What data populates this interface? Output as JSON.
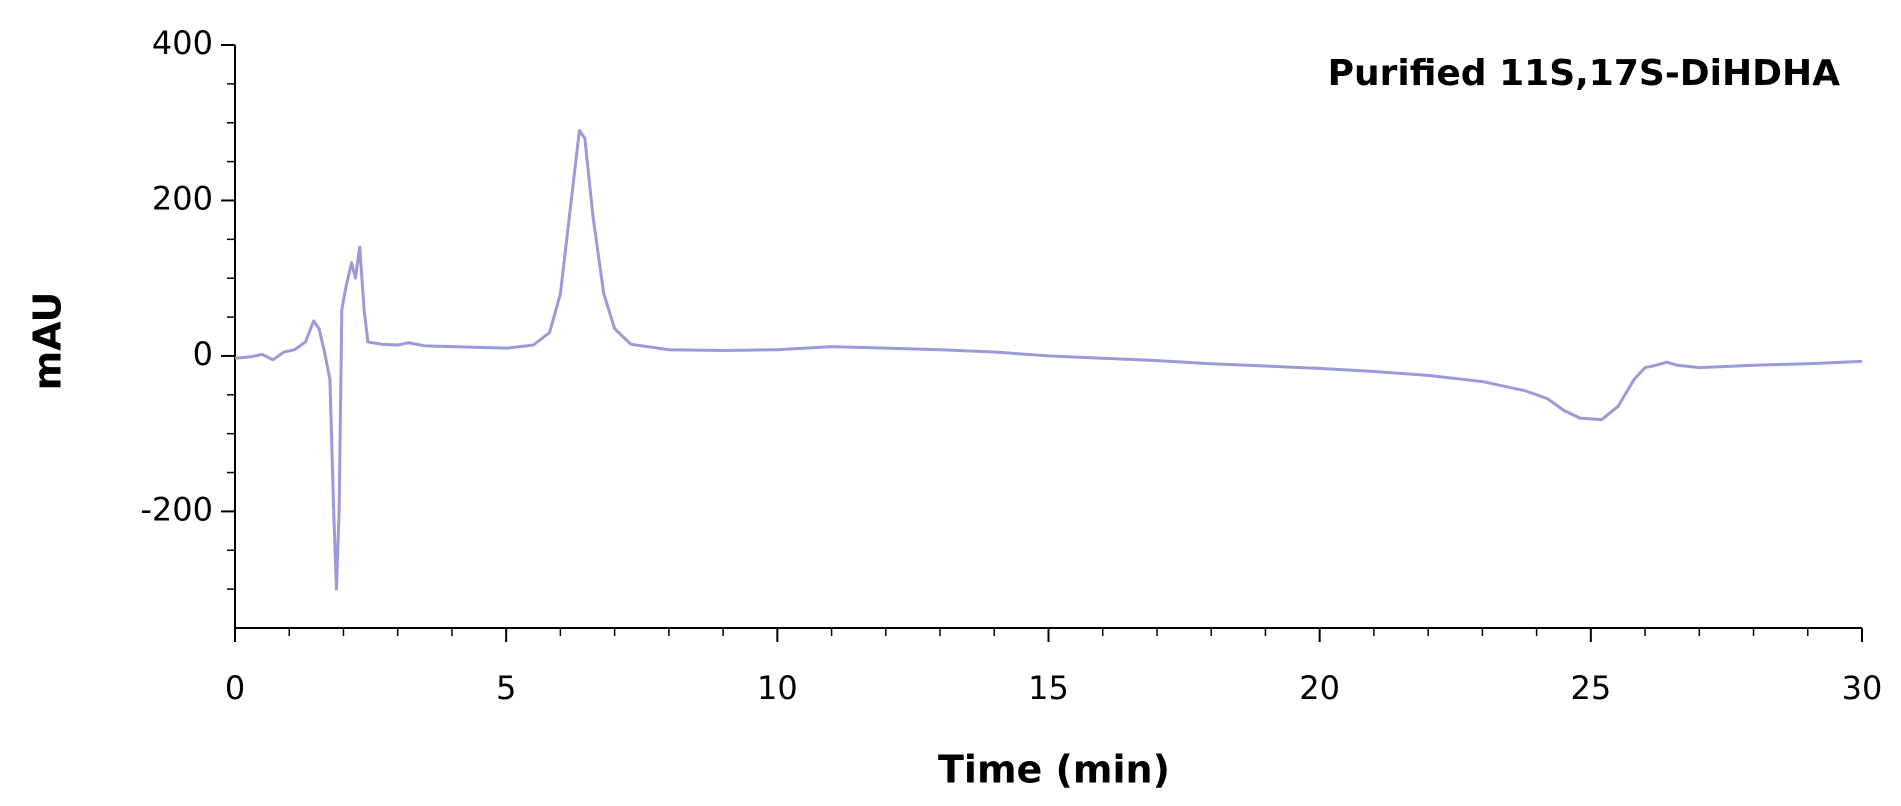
{
  "chart_data": {
    "type": "line",
    "title": "Purified 11S,17S-DiHDHA",
    "x_label": "Time (min)",
    "y_label": "mAU",
    "xlim": [
      0,
      30
    ],
    "xticks": [
      0,
      5,
      10,
      15,
      20,
      25,
      30
    ],
    "xminorticks": [
      1,
      2,
      3,
      4,
      6,
      7,
      8,
      9,
      11,
      12,
      13,
      14,
      16,
      17,
      18,
      19,
      21,
      22,
      23,
      24,
      26,
      27,
      28,
      29
    ],
    "ylim": [
      -350,
      400
    ],
    "yticks": [
      -200,
      0,
      200,
      400
    ],
    "yminorticks": [
      -300,
      -250,
      -150,
      -100,
      -50,
      50,
      100,
      150,
      250,
      300,
      350
    ],
    "grid": false,
    "series": [
      {
        "color": "#9a9ad8",
        "x": [
          0,
          0.3,
          0.5,
          0.7,
          0.9,
          1.1,
          1.3,
          1.45,
          1.55,
          1.65,
          1.75,
          1.82,
          1.87,
          1.92,
          1.97,
          2.05,
          2.15,
          2.22,
          2.3,
          2.38,
          2.45,
          2.7,
          3.0,
          3.2,
          3.5,
          4,
          5,
          5.5,
          5.8,
          6.0,
          6.2,
          6.35,
          6.45,
          6.6,
          6.8,
          7.0,
          7.3,
          8,
          9,
          10,
          11,
          12,
          13,
          14,
          15,
          16,
          17,
          18,
          19,
          20,
          21,
          22,
          23,
          23.8,
          24.2,
          24.5,
          24.8,
          25.2,
          25.5,
          25.8,
          26,
          26.2,
          26.4,
          26.6,
          27,
          28,
          29,
          30
        ],
        "values": [
          -3,
          -1,
          2,
          -5,
          5,
          8,
          18,
          45,
          35,
          5,
          -30,
          -200,
          -300,
          -200,
          60,
          90,
          120,
          100,
          140,
          60,
          18,
          15,
          14,
          17,
          13,
          12,
          10,
          14,
          30,
          80,
          200,
          290,
          280,
          180,
          80,
          35,
          15,
          8,
          7,
          8,
          12,
          10,
          8,
          5,
          0,
          -3,
          -6,
          -10,
          -13,
          -16,
          -20,
          -25,
          -33,
          -45,
          -55,
          -70,
          -80,
          -82,
          -65,
          -30,
          -15,
          -12,
          -8,
          -12,
          -15,
          -12,
          -10,
          -7
        ]
      }
    ]
  }
}
